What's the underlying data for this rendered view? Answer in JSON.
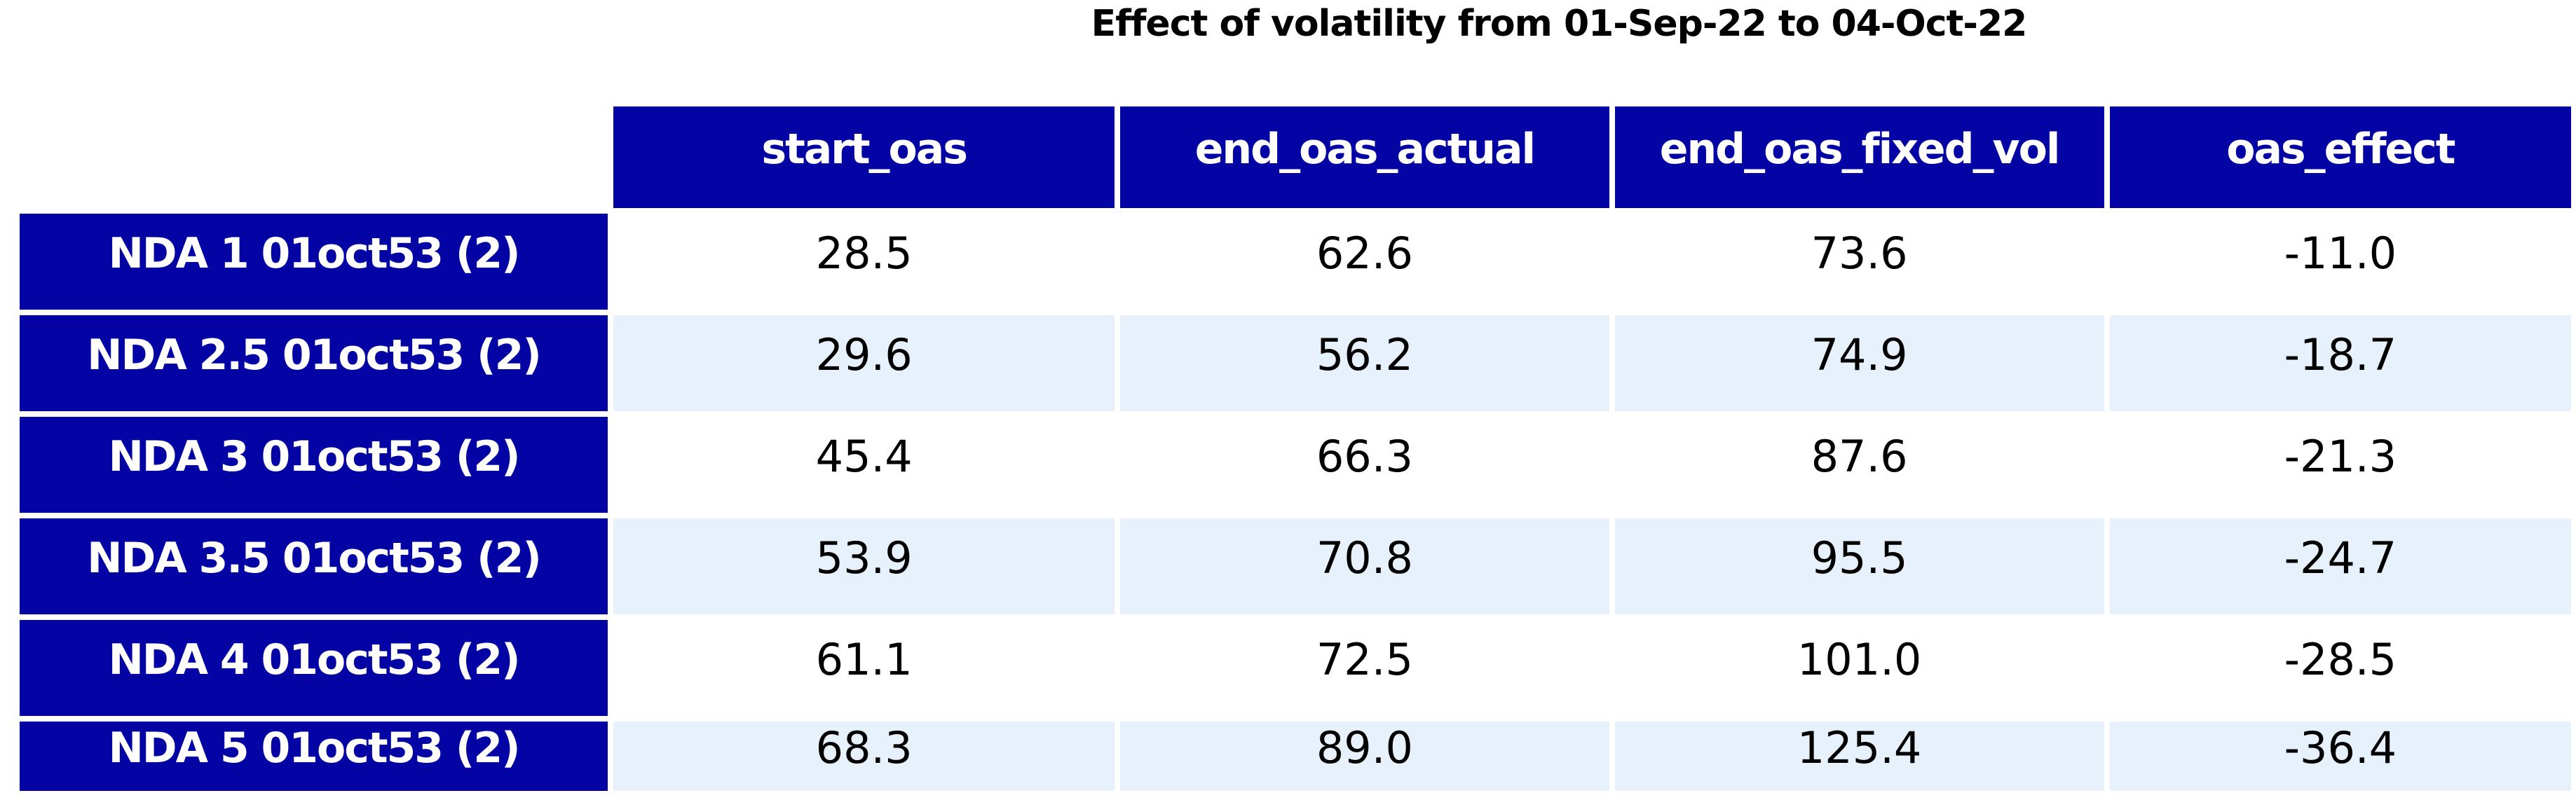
{
  "title": "Effect of volatility from 01-Sep-22 to 04-Oct-22",
  "table": {
    "header": [
      "start_oas",
      "end_oas_actual",
      "end_oas_fixed_vol",
      "oas_effect"
    ],
    "rows": [
      {
        "label": "NDA 1 01oct53 (2)",
        "cells": [
          "28.5",
          "62.6",
          "73.6",
          "-11.0"
        ]
      },
      {
        "label": "NDA 2.5 01oct53 (2)",
        "cells": [
          "29.6",
          "56.2",
          "74.9",
          "-18.7"
        ]
      },
      {
        "label": "NDA 3 01oct53 (2)",
        "cells": [
          "45.4",
          "66.3",
          "87.6",
          "-21.3"
        ]
      },
      {
        "label": "NDA 3.5 01oct53 (2)",
        "cells": [
          "53.9",
          "70.8",
          "95.5",
          "-24.7"
        ]
      },
      {
        "label": "NDA 4 01oct53 (2)",
        "cells": [
          "61.1",
          "72.5",
          "101.0",
          "-28.5"
        ]
      },
      {
        "label": "NDA 5 01oct53 (2)",
        "cells": [
          "68.3",
          "89.0",
          "125.4",
          "-36.4"
        ]
      }
    ]
  },
  "colors": {
    "header_bg": "#0404A4",
    "row_label_bg": "#0404A4",
    "header_text": "#FFFFFF",
    "stripe_bg": "#E6F1FC",
    "plain_row_bg": "#FFFFFF",
    "value_text": "#000000"
  },
  "chart_data": {
    "type": "table",
    "title": "Effect of volatility from 01-Sep-22 to 04-Oct-22",
    "columns": [
      "start_oas",
      "end_oas_actual",
      "end_oas_fixed_vol",
      "oas_effect"
    ],
    "row_labels": [
      "NDA 1 01oct53 (2)",
      "NDA 2.5 01oct53 (2)",
      "NDA 3 01oct53 (2)",
      "NDA 3.5 01oct53 (2)",
      "NDA 4 01oct53 (2)",
      "NDA 5 01oct53 (2)"
    ],
    "values": [
      [
        28.5,
        62.6,
        73.6,
        -11.0
      ],
      [
        29.6,
        56.2,
        74.9,
        -18.7
      ],
      [
        45.4,
        66.3,
        87.6,
        -21.3
      ],
      [
        53.9,
        70.8,
        95.5,
        -24.7
      ],
      [
        61.1,
        72.5,
        101.0,
        -28.5
      ],
      [
        68.3,
        89.0,
        125.4,
        -36.4
      ]
    ],
    "layout": {
      "striped_rows": true,
      "header_position": "top",
      "row_labels_position": "left",
      "grid": false,
      "legend": "none"
    }
  }
}
